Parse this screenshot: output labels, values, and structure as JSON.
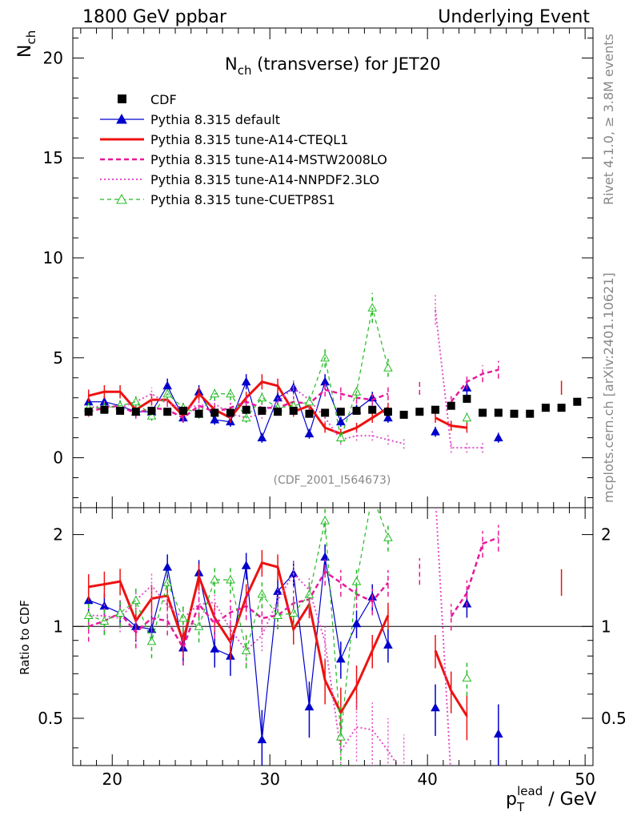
{
  "header": {
    "left": "1800 GeV ppbar",
    "right": "Underlying Event"
  },
  "side": {
    "rivet": "Rivet 4.1.0, ≥ 3.8M events",
    "mcplots": "mcplots.cern.ch [arXiv:2401.10621]"
  },
  "chart_data": {
    "type": "line",
    "title": "N_ch (transverse) for JET20",
    "ylabel": "N_ch",
    "xlabel": "p_T^lead / GeV",
    "ratio_ylabel": "Ratio to CDF",
    "watermark": "(CDF_2001_I564673)",
    "xlim": [
      17.5,
      50.5
    ],
    "ylim": [
      -2.5,
      21.5
    ],
    "ratio_ylim": [
      0.35,
      2.45
    ],
    "x_ticks": [
      20,
      30,
      40,
      50
    ],
    "y_ticks": [
      0,
      5,
      10,
      15,
      20
    ],
    "ratio_ticks": [
      0.5,
      1,
      2
    ],
    "legend": [
      {
        "name": "CDF",
        "color": "#000000",
        "style": "data"
      },
      {
        "name": "Pythia 8.315 default",
        "color": "#0000cc",
        "style": "line-triangle"
      },
      {
        "name": "Pythia 8.315 tune-A14-CTEQL1",
        "color": "#ee1111",
        "style": "thick"
      },
      {
        "name": "Pythia 8.315 tune-A14-MSTW2008LO",
        "color": "#e8189a",
        "style": "dash"
      },
      {
        "name": "Pythia 8.315 tune-A14-NNPDF2.3LO",
        "color": "#e050c8",
        "style": "dot"
      },
      {
        "name": "Pythia 8.315 tune-CUETP8S1",
        "color": "#22bb22",
        "style": "dash-open-triangle"
      }
    ],
    "x": [
      18.5,
      19.5,
      20.5,
      21.5,
      22.5,
      23.5,
      24.5,
      25.5,
      26.5,
      27.5,
      28.5,
      29.5,
      30.5,
      31.5,
      32.5,
      33.5,
      34.5,
      35.5,
      36.5,
      37.5,
      38.5,
      39.5,
      40.5,
      41.5,
      42.5,
      43.5,
      44.5,
      45.5,
      46.5,
      47.5,
      48.5,
      49.5
    ],
    "data": [
      2.3,
      2.4,
      2.35,
      2.3,
      2.35,
      2.3,
      2.35,
      2.2,
      2.25,
      2.25,
      2.4,
      2.35,
      2.3,
      2.35,
      2.2,
      2.25,
      2.3,
      2.35,
      2.4,
      2.3,
      2.15,
      2.3,
      2.4,
      2.6,
      2.95,
      2.25,
      2.25,
      2.2,
      2.2,
      2.5,
      2.5,
      2.8
    ],
    "series": [
      {
        "name": "Pythia 8.315 default",
        "values": [
          2.8,
          2.8,
          2.6,
          2.3,
          2.3,
          3.6,
          2.0,
          3.3,
          1.9,
          1.8,
          3.8,
          1.0,
          3.0,
          3.5,
          1.2,
          3.8,
          1.8,
          2.4,
          3.0,
          2.0,
          null,
          null,
          1.3,
          null,
          3.5,
          null,
          1.0,
          null,
          null,
          null,
          null,
          null
        ]
      },
      {
        "name": "Pythia 8.315 tune-A14-CTEQL1",
        "values": [
          3.1,
          3.3,
          3.3,
          2.4,
          2.9,
          2.9,
          2.1,
          3.2,
          2.4,
          2.0,
          3.0,
          3.8,
          3.6,
          2.3,
          2.6,
          1.5,
          1.2,
          1.5,
          2.0,
          2.5,
          null,
          null,
          2.0,
          1.6,
          1.5,
          null,
          null,
          null,
          null,
          null,
          3.5,
          null
        ]
      },
      {
        "name": "Pythia 8.315 tune-A14-MSTW2008LO",
        "values": [
          2.3,
          2.5,
          2.6,
          2.2,
          2.5,
          2.4,
          2.0,
          2.6,
          2.3,
          2.5,
          2.8,
          2.5,
          2.5,
          2.8,
          2.7,
          3.4,
          3.2,
          3.0,
          2.9,
          3.2,
          null,
          3.5,
          null,
          2.8,
          3.8,
          4.2,
          4.4,
          null,
          null,
          null,
          null,
          null
        ]
      },
      {
        "name": "Pythia 8.315 tune-A14-NNPDF2.3LO",
        "values": [
          2.5,
          2.6,
          2.5,
          2.8,
          3.2,
          2.7,
          2.5,
          2.6,
          2.7,
          2.2,
          2.0,
          2.2,
          2.8,
          3.5,
          2.9,
          2.0,
          0.9,
          1.1,
          1.1,
          0.9,
          0.7,
          null,
          7.4,
          0.5,
          0.5,
          0.5,
          null,
          null,
          null,
          null,
          null,
          null
        ]
      },
      {
        "name": "Pythia 8.315 tune-CUETP8S1",
        "values": [
          2.5,
          2.5,
          2.6,
          2.8,
          2.1,
          3.2,
          2.5,
          2.2,
          3.2,
          3.2,
          2.0,
          3.0,
          2.5,
          2.6,
          2.8,
          5.0,
          1.0,
          3.3,
          7.5,
          4.5,
          null,
          null,
          null,
          null,
          2.0,
          null,
          null,
          null,
          null,
          null,
          null,
          null
        ]
      }
    ]
  }
}
